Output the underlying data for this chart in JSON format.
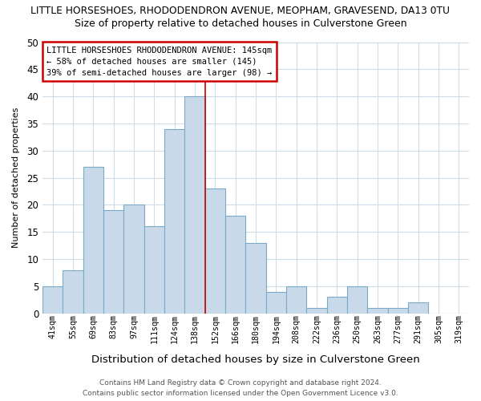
{
  "title": "LITTLE HORSESHOES, RHODODENDRON AVENUE, MEOPHAM, GRAVESEND, DA13 0TU",
  "subtitle": "Size of property relative to detached houses in Culverstone Green",
  "xlabel": "Distribution of detached houses by size in Culverstone Green",
  "ylabel": "Number of detached properties",
  "bar_labels": [
    "41sqm",
    "55sqm",
    "69sqm",
    "83sqm",
    "97sqm",
    "111sqm",
    "124sqm",
    "138sqm",
    "152sqm",
    "166sqm",
    "180sqm",
    "194sqm",
    "208sqm",
    "222sqm",
    "236sqm",
    "250sqm",
    "263sqm",
    "277sqm",
    "291sqm",
    "305sqm",
    "319sqm"
  ],
  "bar_heights": [
    5,
    8,
    27,
    19,
    20,
    16,
    34,
    40,
    23,
    18,
    13,
    4,
    5,
    1,
    3,
    5,
    1,
    1,
    2,
    0,
    0
  ],
  "bar_color": "#c8daea",
  "bar_edge_color": "#7aaac8",
  "ylim": [
    0,
    50
  ],
  "yticks": [
    0,
    5,
    10,
    15,
    20,
    25,
    30,
    35,
    40,
    45,
    50
  ],
  "vline_x": 8,
  "vline_color": "#cc0000",
  "annotation_title": "LITTLE HORSESHOES RHODODENDRON AVENUE: 145sqm",
  "annotation_line1": "← 58% of detached houses are smaller (145)",
  "annotation_line2": "39% of semi-detached houses are larger (98) →",
  "footer1": "Contains HM Land Registry data © Crown copyright and database right 2024.",
  "footer2": "Contains public sector information licensed under the Open Government Licence v3.0.",
  "bg_color": "#ffffff",
  "grid_color": "#d0dce8"
}
